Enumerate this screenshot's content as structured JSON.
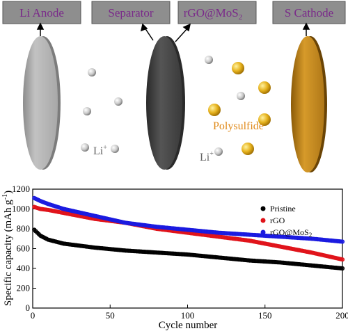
{
  "schematic": {
    "labels": {
      "anode": "Li Anode",
      "separator": "Separator",
      "rgo_prefix": "rGO@MoS",
      "rgo_sub": "2",
      "cathode": "S Cathode"
    },
    "li_text": "Li",
    "li_sup": "+",
    "polysulfide_text": "Polysulfide",
    "colors": {
      "label_box": "#8e8e8e",
      "label_text": "#7a2a8a",
      "anode": "#b8b8b8",
      "separator": "#454545",
      "cathode": "#c98a1c",
      "polysulfide_ball": "#e6b21d",
      "polysulfide_text": "#e08a1a"
    }
  },
  "chart_data": {
    "type": "scatter",
    "xlabel": "Cycle number",
    "ylabel": "Specific capacity (mAh g",
    "ylabel_sup": "-1",
    "ylabel_close": ")",
    "xlim": [
      0,
      200
    ],
    "ylim": [
      0,
      1200
    ],
    "xticks": [
      "0",
      "50",
      "100",
      "150",
      "200"
    ],
    "yticks": [
      "0",
      "200",
      "400",
      "600",
      "800",
      "1000",
      "1200"
    ],
    "legend_position": "top-right",
    "series": [
      {
        "name": "Pristine",
        "color": "#000000",
        "anchors": [
          [
            1,
            790
          ],
          [
            5,
            730
          ],
          [
            10,
            690
          ],
          [
            20,
            650
          ],
          [
            40,
            610
          ],
          [
            60,
            580
          ],
          [
            80,
            560
          ],
          [
            100,
            540
          ],
          [
            120,
            510
          ],
          [
            140,
            480
          ],
          [
            160,
            460
          ],
          [
            180,
            430
          ],
          [
            200,
            400
          ]
        ]
      },
      {
        "name": "rGO",
        "color": "#e0131a",
        "anchors": [
          [
            1,
            1020
          ],
          [
            5,
            1000
          ],
          [
            10,
            990
          ],
          [
            20,
            960
          ],
          [
            40,
            900
          ],
          [
            60,
            860
          ],
          [
            80,
            800
          ],
          [
            100,
            760
          ],
          [
            120,
            720
          ],
          [
            140,
            680
          ],
          [
            160,
            620
          ],
          [
            180,
            560
          ],
          [
            200,
            490
          ]
        ]
      },
      {
        "name": "rGO@MoS",
        "name_sub": "2",
        "color": "#1a1ae0",
        "anchors": [
          [
            1,
            1110
          ],
          [
            5,
            1080
          ],
          [
            10,
            1050
          ],
          [
            20,
            1000
          ],
          [
            40,
            930
          ],
          [
            60,
            860
          ],
          [
            80,
            820
          ],
          [
            100,
            790
          ],
          [
            120,
            760
          ],
          [
            140,
            740
          ],
          [
            160,
            720
          ],
          [
            180,
            700
          ],
          [
            200,
            670
          ]
        ]
      }
    ]
  }
}
